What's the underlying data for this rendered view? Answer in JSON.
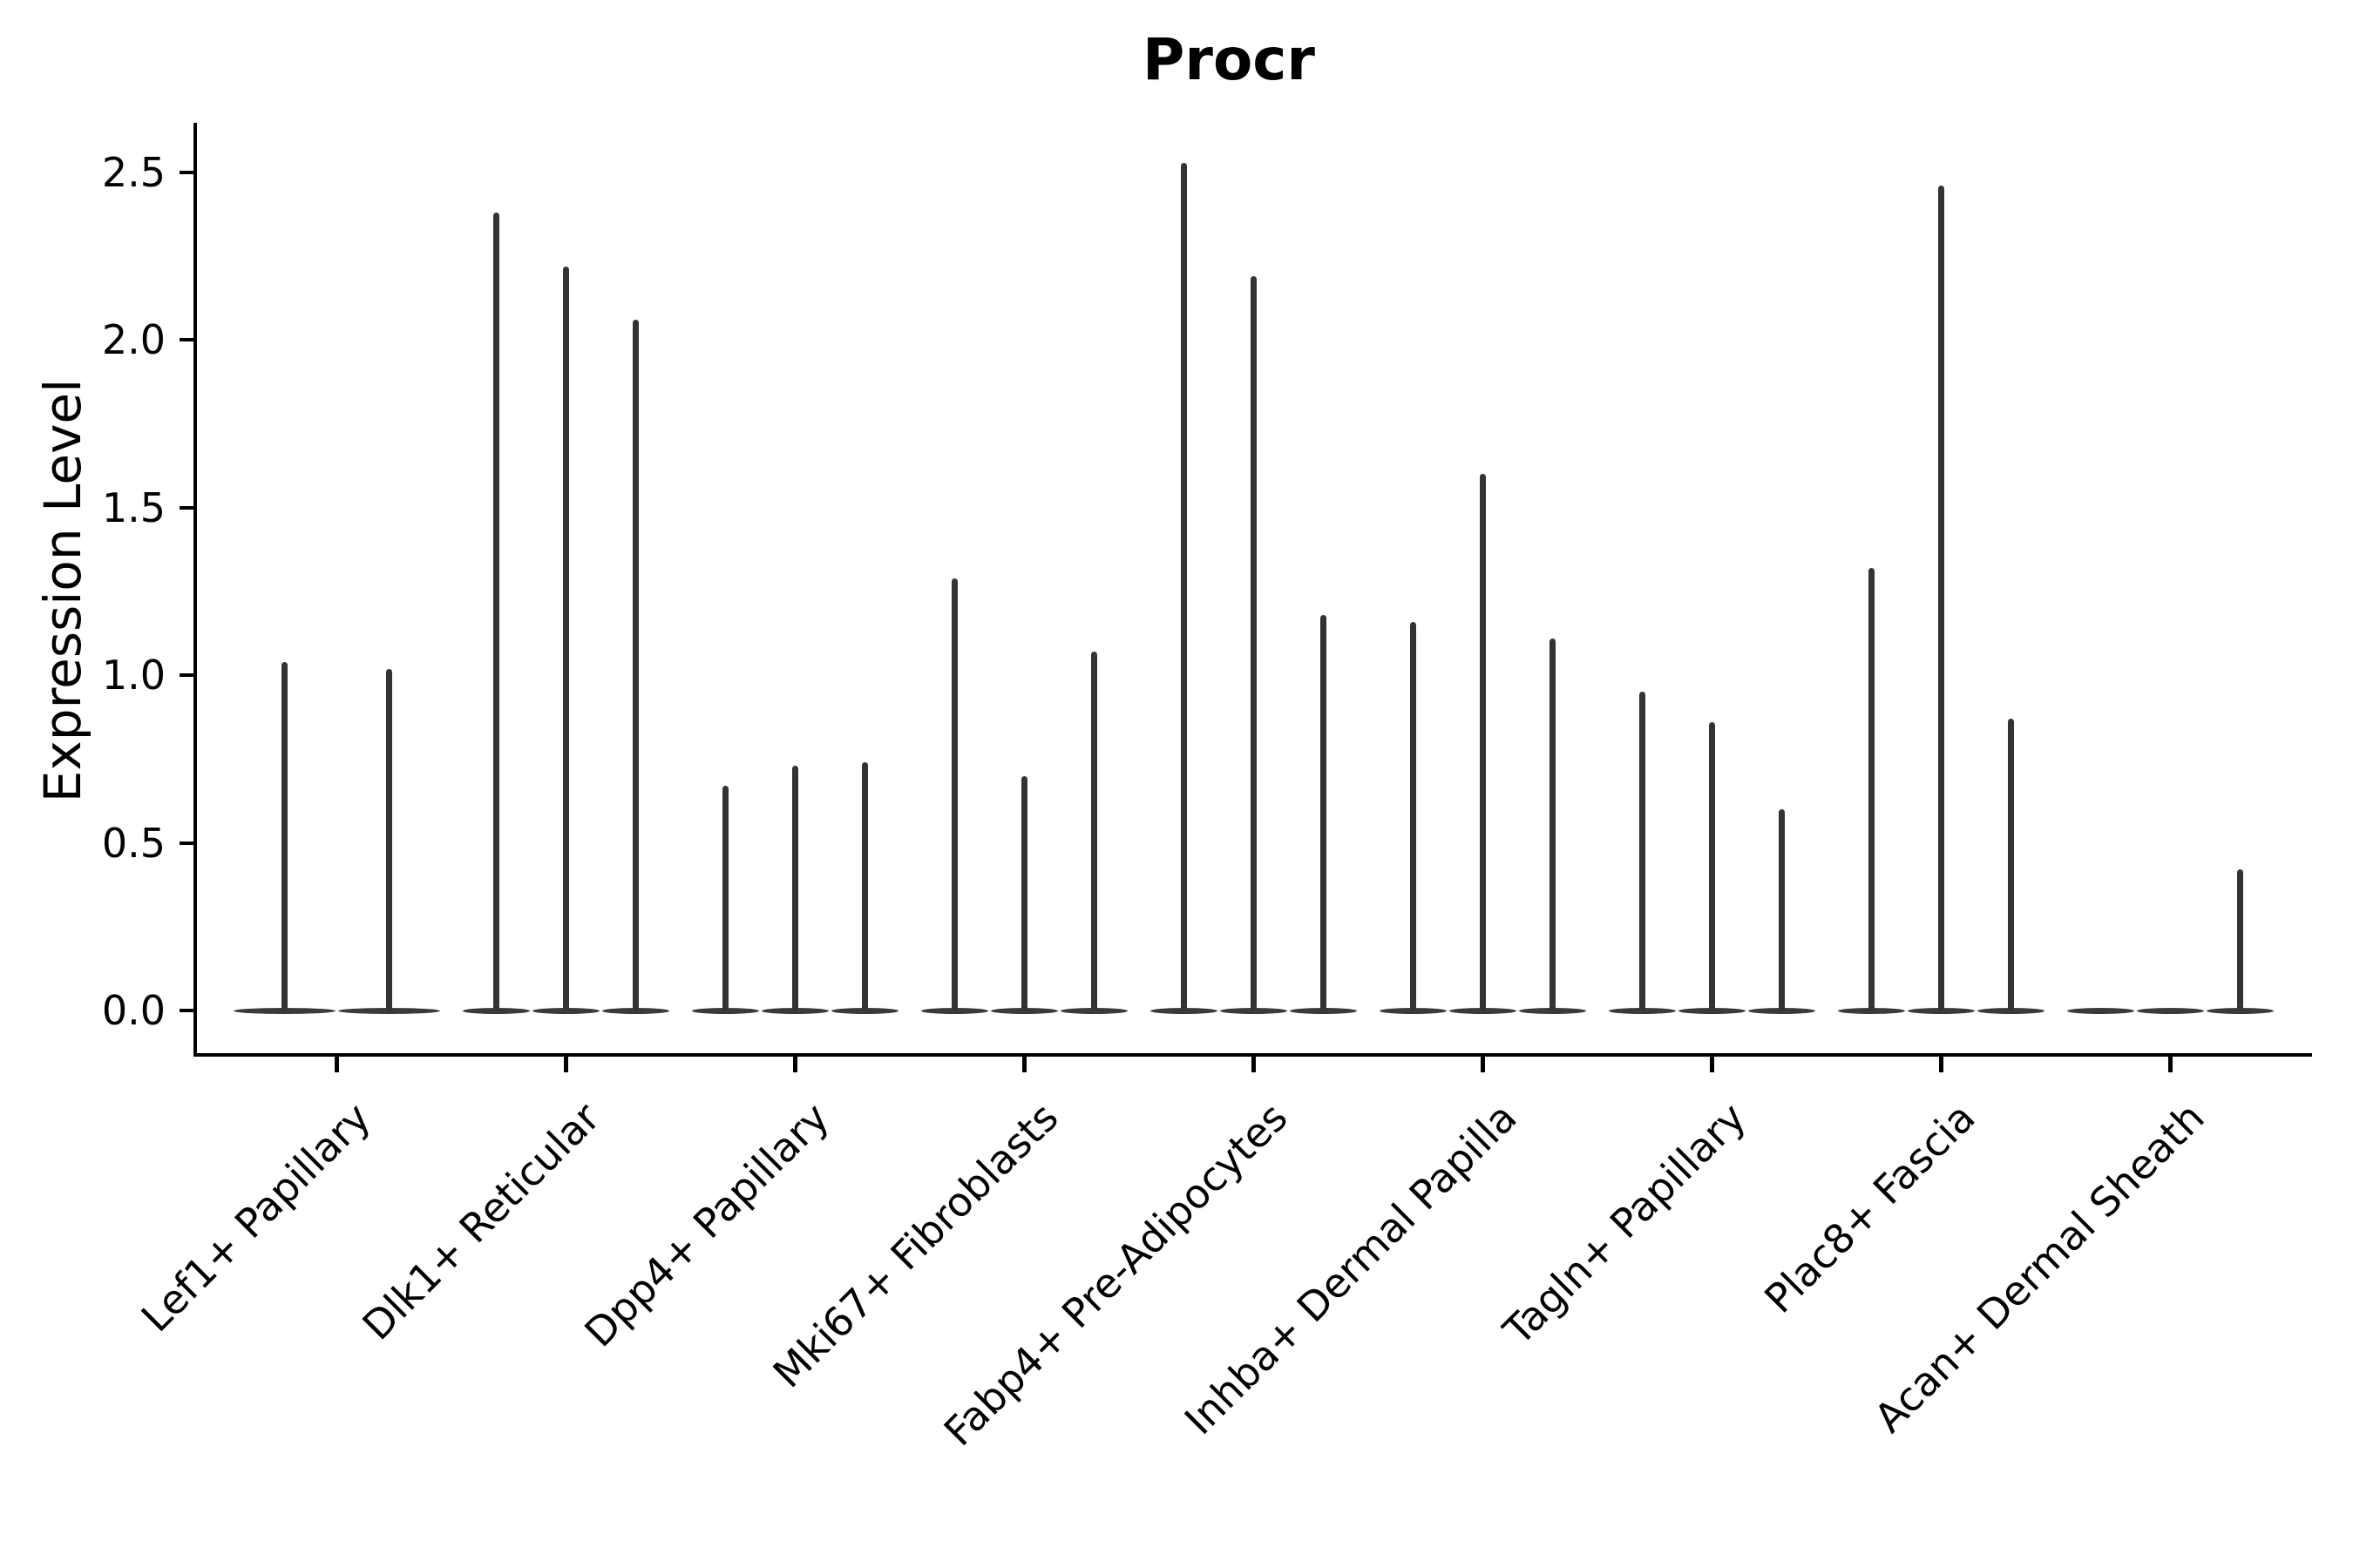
{
  "chart_data": {
    "type": "violin",
    "title": "Procr",
    "xlabel": "",
    "ylabel": "Expression Level",
    "yticks": [
      0.0,
      0.5,
      1.0,
      1.5,
      2.0,
      2.5
    ],
    "ytick_labels": [
      "0.0",
      "0.5",
      "1.0",
      "1.5",
      "2.0",
      "2.5"
    ],
    "ylim": [
      -0.13,
      2.66
    ],
    "grid": false,
    "legend": "none",
    "xtick_rotation_deg": 45,
    "categories": [
      "Lef1+ Papillary",
      "Dlk1+ Reticular",
      "Dpp4+ Papillary",
      "Mki67+ Fibroblasts",
      "Fabp4+ Pre-Adipocytes",
      "Inhba+ Dermal Papilla",
      "Tagln+ Papillary",
      "Plac8+ Fascia",
      "Acan+ Dermal Sheath"
    ],
    "groups": [
      {
        "category": "Lef1+ Papillary",
        "violin_maxima": [
          1.04,
          1.02
        ]
      },
      {
        "category": "Dlk1+ Reticular",
        "violin_maxima": [
          2.38,
          2.22,
          2.06
        ]
      },
      {
        "category": "Dpp4+ Papillary",
        "violin_maxima": [
          0.67,
          0.73,
          0.74
        ]
      },
      {
        "category": "Mki67+ Fibroblasts",
        "violin_maxima": [
          1.29,
          0.7,
          1.07
        ]
      },
      {
        "category": "Fabp4+ Pre-Adipocytes",
        "violin_maxima": [
          2.53,
          2.19,
          1.18
        ]
      },
      {
        "category": "Inhba+ Dermal Papilla",
        "violin_maxima": [
          1.16,
          1.6,
          1.11
        ]
      },
      {
        "category": "Tagln+ Papillary",
        "violin_maxima": [
          0.95,
          0.86,
          0.6
        ]
      },
      {
        "category": "Plac8+ Fascia",
        "violin_maxima": [
          1.32,
          2.46,
          0.87
        ]
      },
      {
        "category": "Acan+ Dermal Sheath",
        "violin_maxima": [
          0.0,
          0.0,
          0.42
        ]
      }
    ],
    "violin_shape_note": "each violin is collapsed to a flat line at 0 with a single thin density spike rising to its maximum value",
    "colors": {
      "violin_spike": "#333333",
      "violin_base": "#3a3a3a",
      "axis": "#000000",
      "text": "#000000",
      "background": "#ffffff"
    }
  }
}
